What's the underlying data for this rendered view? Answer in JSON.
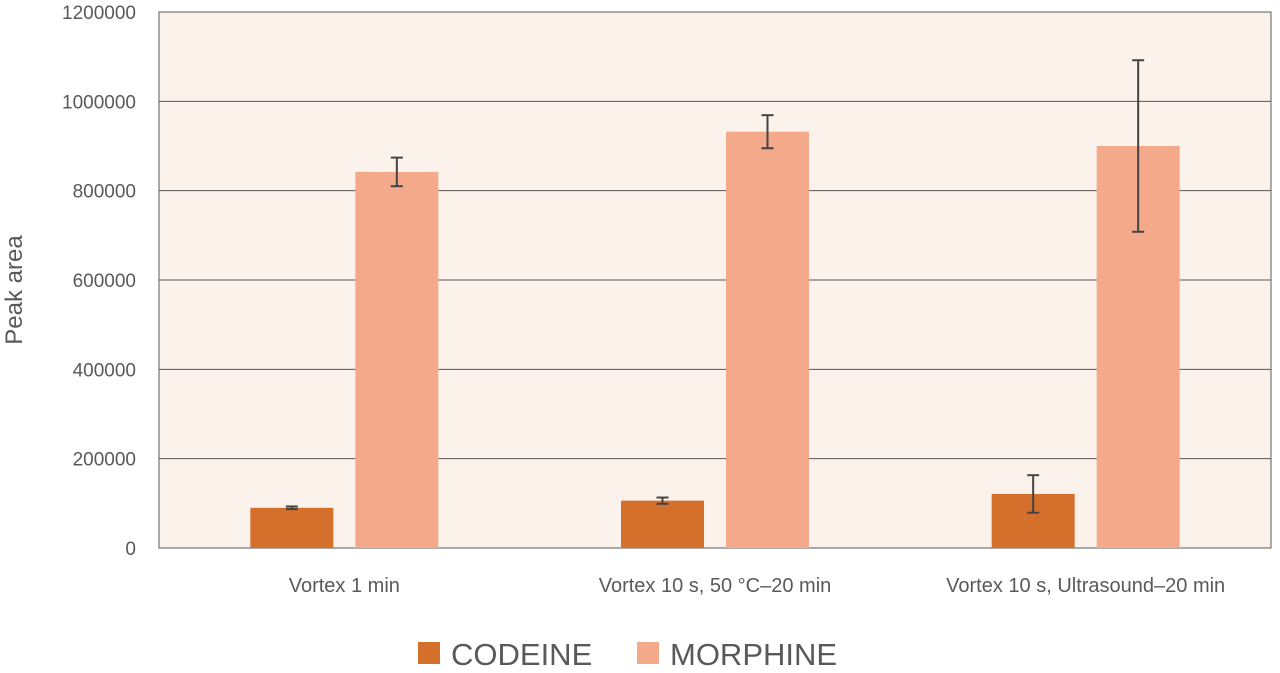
{
  "chart_data": {
    "type": "bar",
    "title": "",
    "xlabel": "",
    "ylabel": "Peak area",
    "ylim": [
      0,
      1200000
    ],
    "yticks": [
      "0",
      "200000",
      "400000",
      "600000",
      "800000",
      "1000000",
      "1200000"
    ],
    "categories": [
      "Vortex 1 min",
      "Vortex 10 s, 50 °C–20 min",
      "Vortex 10 s, Ultrasound–20 min"
    ],
    "series": [
      {
        "name": "CODEINE",
        "color": "#D5702C",
        "values": [
          90000,
          106000,
          121000
        ],
        "error": [
          3000,
          7000,
          42000
        ]
      },
      {
        "name": "MORPHINE",
        "color": "#F4A98A",
        "values": [
          842000,
          932000,
          900000
        ],
        "error": [
          32000,
          37000,
          192000
        ]
      }
    ],
    "grid": true,
    "legend": "bottom",
    "plot_background": "#FBF2EC"
  }
}
